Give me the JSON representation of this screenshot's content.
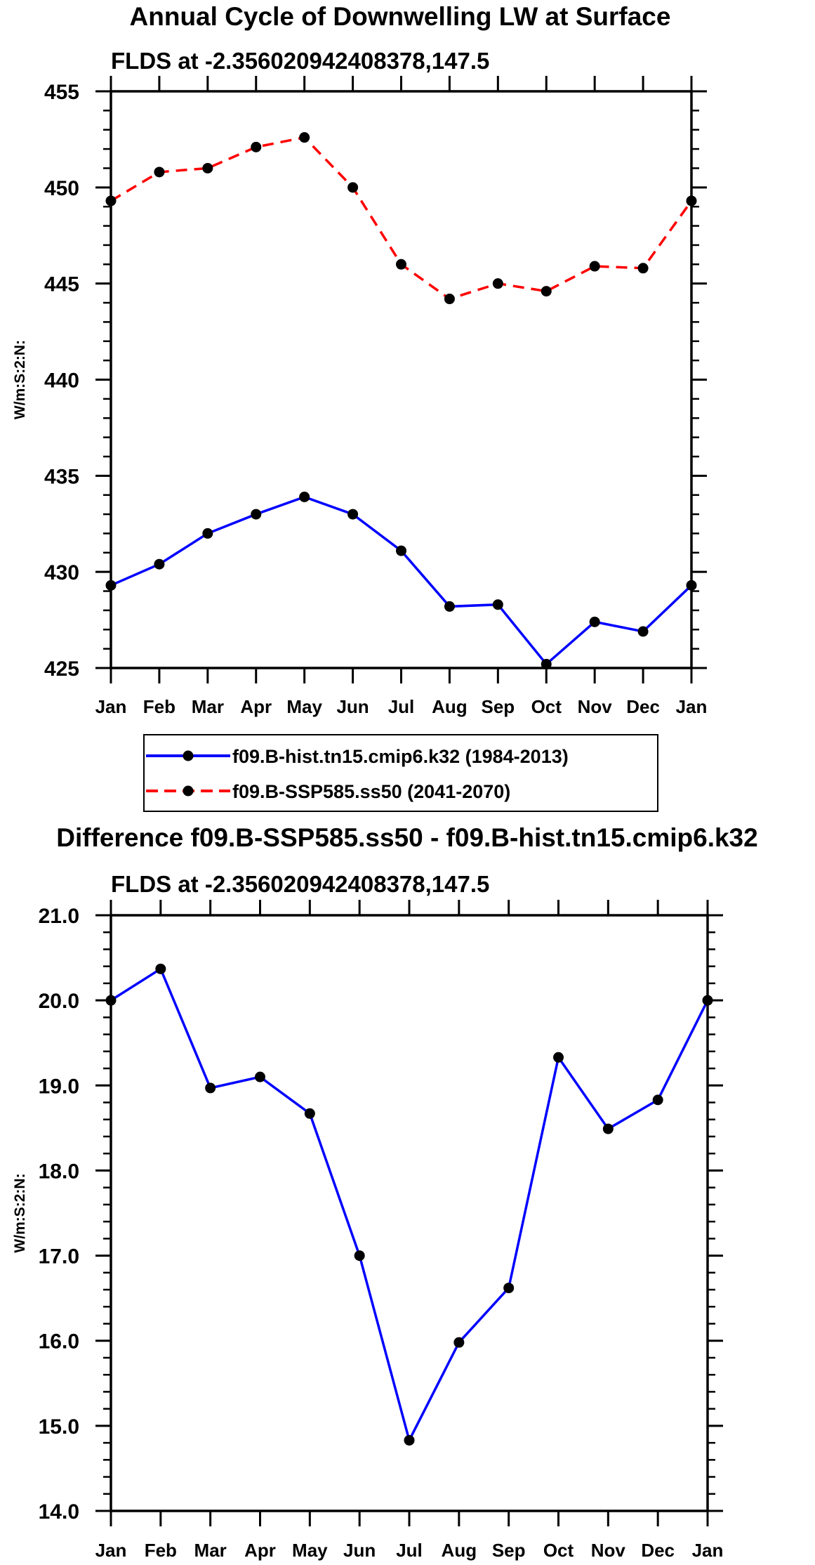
{
  "chart_data": [
    {
      "type": "line",
      "title": "Annual Cycle of Downwelling LW at Surface",
      "subtitle": "FLDS at -2.356020942408378,147.5",
      "ylabel": "W/m:S:2:N:",
      "xlabel": "",
      "categories": [
        "Jan",
        "Feb",
        "Mar",
        "Apr",
        "May",
        "Jun",
        "Jul",
        "Aug",
        "Sep",
        "Oct",
        "Nov",
        "Dec",
        "Jan"
      ],
      "ylim": [
        425,
        455
      ],
      "yticks": [
        "425",
        "430",
        "435",
        "440",
        "445",
        "450",
        "455"
      ],
      "ytick_values": [
        425,
        430,
        435,
        440,
        445,
        450,
        455
      ],
      "yminor_step": 1,
      "grid": false,
      "legend_placement": "bottom",
      "series": [
        {
          "name": "f09.B-hist.tn15.cmip6.k32 (1984-2013)",
          "color": "#0000ff",
          "dash": "solid",
          "values": [
            429.3,
            430.4,
            432.0,
            433.0,
            433.9,
            433.0,
            431.1,
            428.2,
            428.3,
            425.2,
            427.4,
            426.9,
            429.3
          ]
        },
        {
          "name": "f09.B-SSP585.ss50 (2041-2070)",
          "color": "#ff0000",
          "dash": "dashed",
          "values": [
            449.3,
            450.8,
            451.0,
            452.1,
            452.6,
            450.0,
            446.0,
            444.2,
            445.0,
            444.6,
            445.9,
            445.8,
            449.3
          ]
        }
      ]
    },
    {
      "type": "line",
      "title": "Difference f09.B-SSP585.ss50 - f09.B-hist.tn15.cmip6.k32",
      "subtitle": "FLDS at -2.356020942408378,147.5",
      "ylabel": "W/m:S:2:N:",
      "xlabel": "",
      "categories": [
        "Jan",
        "Feb",
        "Mar",
        "Apr",
        "May",
        "Jun",
        "Jul",
        "Aug",
        "Sep",
        "Oct",
        "Nov",
        "Dec",
        "Jan"
      ],
      "ylim": [
        14.0,
        21.0
      ],
      "yticks": [
        "14.0",
        "15.0",
        "16.0",
        "17.0",
        "18.0",
        "19.0",
        "20.0",
        "21.0"
      ],
      "ytick_values": [
        14,
        15,
        16,
        17,
        18,
        19,
        20,
        21
      ],
      "yminor_step": 0.2,
      "grid": false,
      "series": [
        {
          "name": "difference",
          "color": "#0000ff",
          "dash": "solid",
          "values": [
            20.0,
            20.37,
            18.97,
            19.1,
            18.67,
            17.0,
            14.83,
            15.98,
            16.62,
            19.33,
            18.49,
            18.83,
            20.0
          ]
        }
      ]
    }
  ]
}
